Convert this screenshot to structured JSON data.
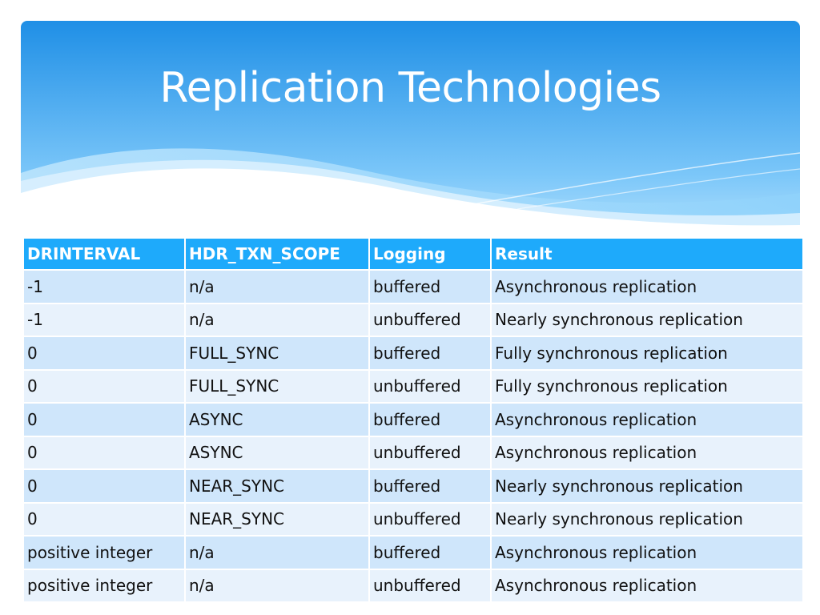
{
  "slide": {
    "title": "Replication Technologies"
  },
  "table": {
    "headers": [
      "DRINTERVAL",
      "HDR_TXN_SCOPE",
      "Logging",
      "Result"
    ],
    "rows": [
      [
        "-1",
        "n/a",
        "buffered",
        "Asynchronous replication"
      ],
      [
        "-1",
        "n/a",
        "unbuffered",
        "Nearly synchronous replication"
      ],
      [
        "0",
        "FULL_SYNC",
        "buffered",
        "Fully synchronous replication"
      ],
      [
        "0",
        "FULL_SYNC",
        "unbuffered",
        "Fully synchronous replication"
      ],
      [
        "0",
        "ASYNC",
        "buffered",
        "Asynchronous replication"
      ],
      [
        "0",
        "ASYNC",
        "unbuffered",
        "Asynchronous replication"
      ],
      [
        "0",
        "NEAR_SYNC",
        "buffered",
        "Nearly synchronous replication"
      ],
      [
        "0",
        "NEAR_SYNC",
        "unbuffered",
        "Nearly synchronous replication"
      ],
      [
        "positive integer",
        "n/a",
        "buffered",
        "Asynchronous replication"
      ],
      [
        "positive integer",
        "n/a",
        "unbuffered",
        "Asynchronous replication"
      ]
    ]
  },
  "colors": {
    "header_top": "#1f8fe6",
    "header_bottom": "#8fd0fb",
    "table_header": "#1eaafb",
    "row_odd": "#cfe6fb",
    "row_even": "#e8f2fc"
  }
}
